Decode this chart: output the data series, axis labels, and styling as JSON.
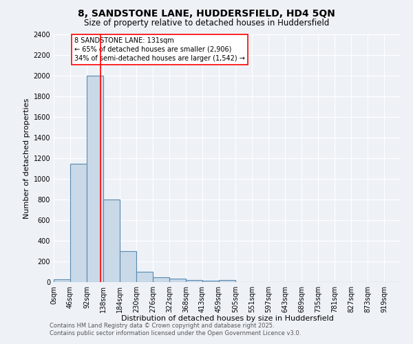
{
  "title1": "8, SANDSTONE LANE, HUDDERSFIELD, HD4 5QN",
  "title2": "Size of property relative to detached houses in Huddersfield",
  "xlabel": "Distribution of detached houses by size in Huddersfield",
  "ylabel": "Number of detached properties",
  "bar_labels": [
    "0sqm",
    "46sqm",
    "92sqm",
    "138sqm",
    "184sqm",
    "230sqm",
    "276sqm",
    "322sqm",
    "368sqm",
    "413sqm",
    "459sqm",
    "505sqm",
    "551sqm",
    "597sqm",
    "643sqm",
    "689sqm",
    "735sqm",
    "781sqm",
    "827sqm",
    "873sqm",
    "919sqm"
  ],
  "bar_values": [
    30,
    1150,
    2000,
    800,
    300,
    100,
    45,
    35,
    20,
    15,
    20,
    0,
    0,
    0,
    0,
    0,
    0,
    0,
    0,
    0,
    0
  ],
  "bar_color": "#c9d9e8",
  "bar_edge_color": "#5a8ab0",
  "bar_edge_width": 0.8,
  "vline_x": 2.848,
  "vline_color": "red",
  "vline_linewidth": 1.2,
  "ylim": [
    0,
    2400
  ],
  "yticks": [
    0,
    200,
    400,
    600,
    800,
    1000,
    1200,
    1400,
    1600,
    1800,
    2000,
    2200,
    2400
  ],
  "annotation_text": "8 SANDSTONE LANE: 131sqm\n← 65% of detached houses are smaller (2,906)\n34% of semi-detached houses are larger (1,542) →",
  "annotation_box_color": "white",
  "annotation_box_edge": "red",
  "footnote1": "Contains HM Land Registry data © Crown copyright and database right 2025.",
  "footnote2": "Contains public sector information licensed under the Open Government Licence v3.0.",
  "bg_color": "#eef2f7",
  "grid_color": "white",
  "title1_fontsize": 10,
  "title2_fontsize": 8.5,
  "xlabel_fontsize": 8,
  "ylabel_fontsize": 8,
  "tick_fontsize": 7,
  "annotation_fontsize": 7,
  "footnote_fontsize": 6
}
